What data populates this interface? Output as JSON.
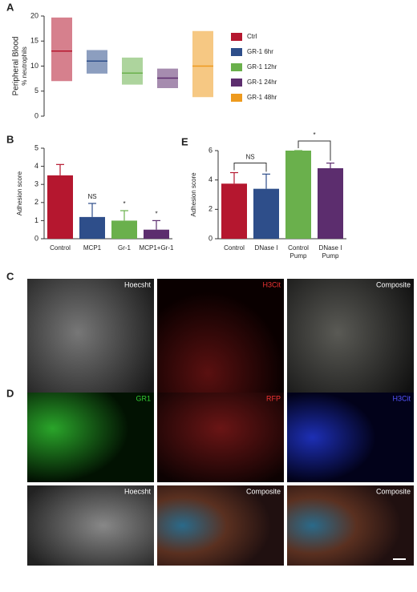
{
  "chart_data": [
    {
      "type": "range",
      "label": "A",
      "ylabel": "Peripheral Blood",
      "ysublabel": "% neutrophils",
      "ylim": [
        0,
        20
      ],
      "yticks": [
        0,
        5,
        10,
        15,
        20
      ],
      "series": [
        {
          "name": "Ctrl",
          "color": "#b5172f",
          "values": [
            7,
            13,
            19.7
          ]
        },
        {
          "name": "GR-1 6hr",
          "color": "#2e4e8a",
          "values": [
            8.5,
            11,
            13.2
          ]
        },
        {
          "name": "GR-1 12hr",
          "color": "#6ab04c",
          "values": [
            6.3,
            8.6,
            11.7
          ]
        },
        {
          "name": "GR-1 24hr",
          "color": "#5c2d6e",
          "values": [
            5.6,
            7.6,
            9.5
          ]
        },
        {
          "name": "GR-1 48hr",
          "color": "#ee9a1e",
          "values": [
            3.8,
            10,
            17
          ]
        }
      ]
    },
    {
      "type": "bar",
      "label": "B",
      "ylabel": "Adhesion score",
      "ylim": [
        0,
        5
      ],
      "yticks": [
        0,
        1,
        2,
        3,
        4,
        5
      ],
      "categories": [
        "Control",
        "MCP1",
        "Gr-1",
        "MCP1+Gr-1"
      ],
      "values": [
        3.5,
        1.2,
        1.0,
        0.5
      ],
      "errors": [
        0.6,
        0.75,
        0.55,
        0.5
      ],
      "colors": [
        "#b5172f",
        "#2e4e8a",
        "#6ab04c",
        "#5c2d6e"
      ],
      "annotations": [
        null,
        "NS",
        "*",
        "*"
      ]
    },
    {
      "type": "bar",
      "label": "E",
      "ylabel": "Adhesion score",
      "ylim": [
        0,
        6
      ],
      "yticks": [
        0,
        2,
        4,
        6
      ],
      "categories": [
        "Control",
        "DNase I",
        "Control\nPump",
        "DNase I\nPump"
      ],
      "values": [
        3.75,
        3.4,
        6.0,
        4.8
      ],
      "errors": [
        0.75,
        1.0,
        0,
        0.35
      ],
      "colors": [
        "#b5172f",
        "#2e4e8a",
        "#6ab04c",
        "#5c2d6e"
      ],
      "brackets": [
        "NS",
        "*"
      ]
    }
  ],
  "images": {
    "C": {
      "label": "C",
      "tiles": [
        "Hoecsht",
        "H3Cit",
        "Composite"
      ]
    },
    "D": {
      "label": "D",
      "tiles": [
        "GR1",
        "RFP",
        "H3Cit",
        "Hoecsht",
        "Composite",
        "Composite"
      ]
    }
  }
}
